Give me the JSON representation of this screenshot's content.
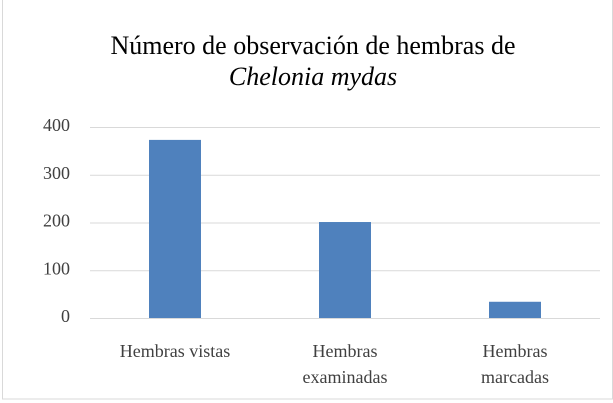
{
  "chart_data": {
    "type": "bar",
    "title": [
      "Número de observación de hembras de",
      "Chelonia mydas"
    ],
    "categories": [
      "Hembras vistas",
      "Hembras examinadas",
      "Hembras marcadas"
    ],
    "values": [
      373,
      201,
      34
    ],
    "color": "#4f81bd",
    "ylim": [
      0,
      400
    ],
    "yticks": [
      0,
      100,
      200,
      300,
      400
    ],
    "grid": true
  }
}
